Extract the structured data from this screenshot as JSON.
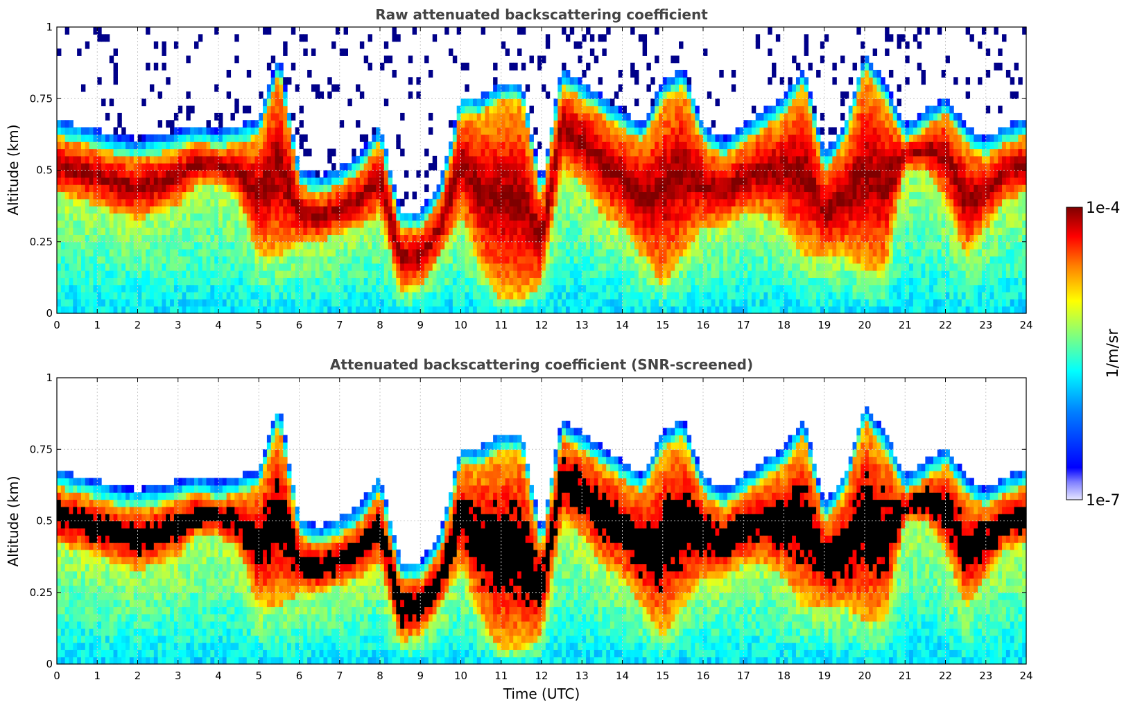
{
  "chart_data": [
    {
      "type": "heatmap",
      "title": "Raw attenuated backscattering coefficient",
      "xlabel": "",
      "ylabel": "Altitude (km)",
      "xlim": [
        0,
        24
      ],
      "ylim": [
        0,
        1
      ],
      "xticks": [
        "0",
        "1",
        "2",
        "3",
        "4",
        "5",
        "6",
        "7",
        "8",
        "9",
        "10",
        "11",
        "12",
        "13",
        "14",
        "15",
        "16",
        "17",
        "18",
        "19",
        "20",
        "21",
        "22",
        "23",
        "24"
      ],
      "yticks": [
        "0",
        "0.25",
        "0.5",
        "0.75",
        "1"
      ],
      "grid": true,
      "colormap": "jet",
      "color_scale": "log",
      "layers": {
        "time_utc": [
          0,
          0.5,
          1,
          1.5,
          2,
          2.5,
          3,
          3.5,
          4,
          4.5,
          5,
          5.5,
          6,
          6.5,
          7,
          7.5,
          8,
          8.5,
          9,
          9.5,
          10,
          10.5,
          11,
          11.5,
          12,
          12.5,
          13,
          13.5,
          14,
          14.5,
          15,
          15.5,
          16,
          16.5,
          17,
          17.5,
          18,
          18.5,
          19,
          19.5,
          20,
          20.5,
          21,
          21.5,
          22,
          22.5,
          23,
          23.5,
          24
        ],
        "layer_top_km": [
          0.62,
          0.6,
          0.58,
          0.56,
          0.55,
          0.56,
          0.58,
          0.6,
          0.58,
          0.6,
          0.62,
          0.85,
          0.45,
          0.42,
          0.45,
          0.5,
          0.6,
          0.3,
          0.3,
          0.4,
          0.7,
          0.7,
          0.75,
          0.75,
          0.4,
          0.8,
          0.75,
          0.7,
          0.65,
          0.6,
          0.75,
          0.8,
          0.6,
          0.55,
          0.6,
          0.65,
          0.7,
          0.8,
          0.5,
          0.6,
          0.85,
          0.75,
          0.6,
          0.65,
          0.7,
          0.6,
          0.55,
          0.6,
          0.62
        ],
        "layer_base_km": [
          0.42,
          0.4,
          0.38,
          0.35,
          0.33,
          0.35,
          0.38,
          0.45,
          0.45,
          0.4,
          0.2,
          0.2,
          0.25,
          0.25,
          0.28,
          0.3,
          0.35,
          0.08,
          0.1,
          0.2,
          0.35,
          0.15,
          0.05,
          0.05,
          0.1,
          0.5,
          0.45,
          0.35,
          0.3,
          0.2,
          0.1,
          0.2,
          0.3,
          0.3,
          0.35,
          0.35,
          0.3,
          0.2,
          0.2,
          0.2,
          0.15,
          0.15,
          0.5,
          0.5,
          0.4,
          0.2,
          0.3,
          0.4,
          0.42
        ]
      }
    },
    {
      "type": "heatmap",
      "title": "Attenuated backscattering coefficient (SNR-screened)",
      "xlabel": "Time (UTC)",
      "ylabel": "Altitude (km)",
      "xlim": [
        0,
        24
      ],
      "ylim": [
        0,
        1
      ],
      "xticks": [
        "0",
        "1",
        "2",
        "3",
        "4",
        "5",
        "6",
        "7",
        "8",
        "9",
        "10",
        "11",
        "12",
        "13",
        "14",
        "15",
        "16",
        "17",
        "18",
        "19",
        "20",
        "21",
        "22",
        "23",
        "24"
      ],
      "yticks": [
        "0",
        "0.25",
        "0.5",
        "0.75",
        "1"
      ],
      "grid": true,
      "colormap": "jet",
      "color_scale": "log",
      "screened": true
    }
  ],
  "colorbar": {
    "min_label": "1e-7",
    "max_label": "1e-4",
    "label": "1/m/sr",
    "min": 1e-07,
    "max": 0.0001,
    "scale": "log",
    "colormap": "jet",
    "colors": [
      "#e6e6ff",
      "#00007f",
      "#0000ff",
      "#007fff",
      "#00ffff",
      "#7fff7f",
      "#ffff00",
      "#ff7f00",
      "#ff0000",
      "#7f0000"
    ],
    "screened_color": "#000000"
  }
}
